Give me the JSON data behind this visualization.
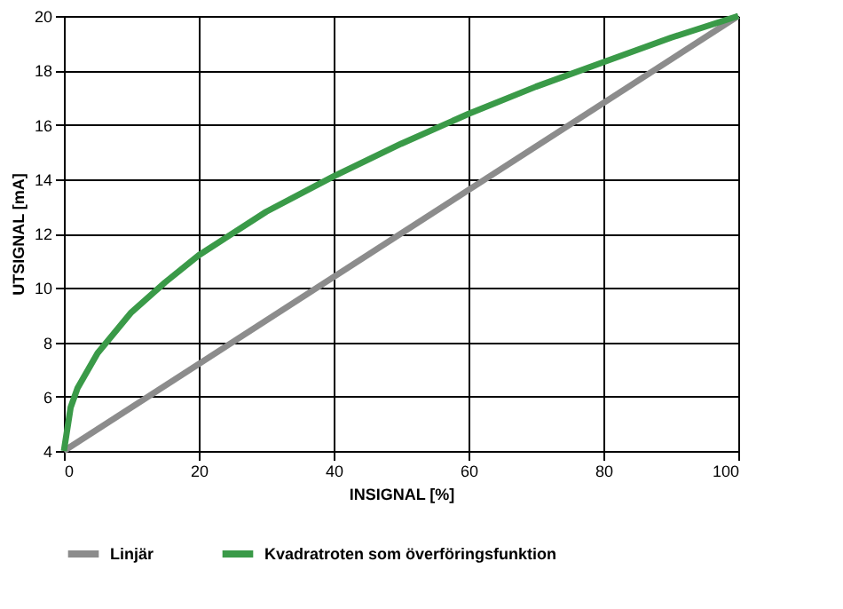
{
  "chart_data": {
    "type": "line",
    "xlabel": "INSIGNAL [%]",
    "ylabel": "UTSIGNAL [mA]",
    "xlim": [
      0,
      100
    ],
    "xticks": [
      0,
      20,
      40,
      60,
      80,
      100
    ],
    "ylim": [
      4,
      20
    ],
    "yticks": [
      4,
      6,
      8,
      10,
      12,
      14,
      16,
      18,
      20
    ],
    "grid": true,
    "legend": "bottom",
    "marker": "none",
    "line_style": "solid",
    "series": [
      {
        "name": "Linjär",
        "color": "#8c8c8c",
        "x": [
          0,
          100
        ],
        "values": [
          4,
          20
        ]
      },
      {
        "name": "Kvadratroten som överföringsfunktion",
        "color": "#3a9a48",
        "x": [
          0,
          1,
          2,
          5,
          10,
          15,
          20,
          30,
          40,
          50,
          60,
          70,
          80,
          90,
          100
        ],
        "values": [
          4,
          5.6,
          6.3,
          7.6,
          9.1,
          10.2,
          11.2,
          12.8,
          14.1,
          15.3,
          16.4,
          17.4,
          18.3,
          19.2,
          20
        ]
      }
    ]
  }
}
